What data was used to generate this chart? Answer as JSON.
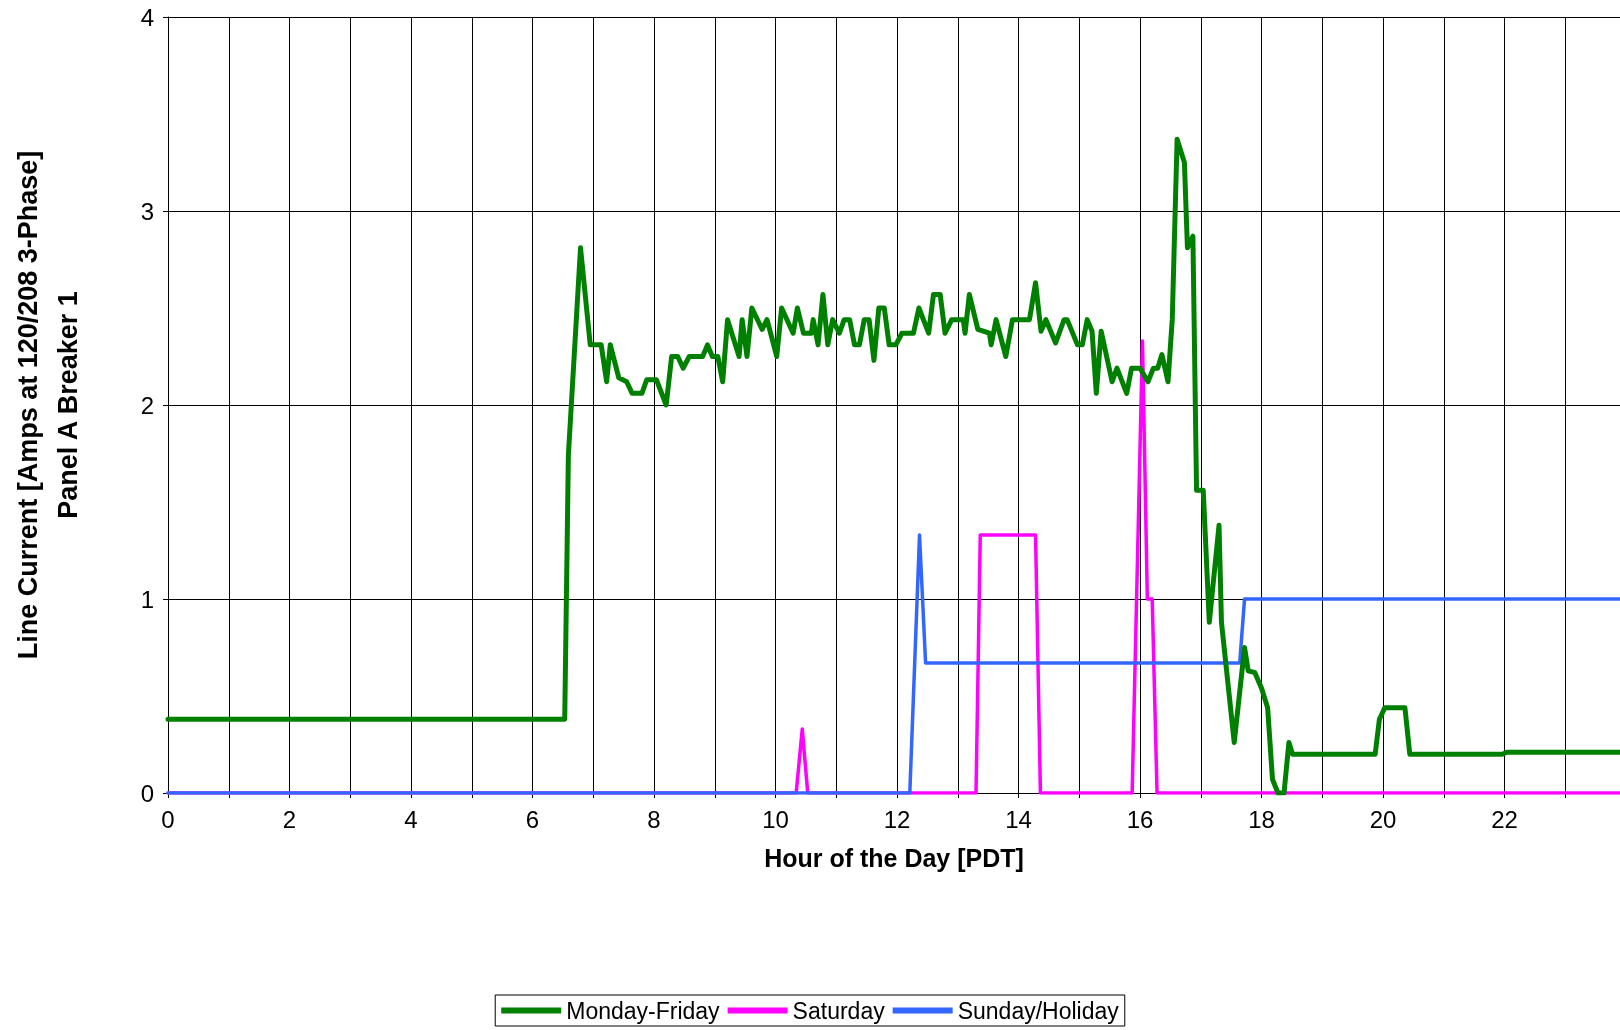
{
  "chart_data": {
    "type": "line",
    "xlabel": "Hour of the Day [PDT]",
    "ylabel": "Line Current [Amps at 120/208 3-Phase]\nPanel A Breaker 1",
    "xlim": [
      0,
      23.9
    ],
    "xticks": [
      0,
      {
        "value": 1,
        "label": null
      },
      2,
      {
        "value": 3,
        "label": null
      },
      4,
      {
        "value": 5,
        "label": null
      },
      6,
      {
        "value": 7,
        "label": null
      },
      8,
      {
        "value": 9,
        "label": null
      },
      10,
      {
        "value": 11,
        "label": null
      },
      12,
      {
        "value": 13,
        "label": null
      },
      14,
      {
        "value": 15,
        "label": null
      },
      16,
      {
        "value": 17,
        "label": null
      },
      18,
      {
        "value": 19,
        "label": null
      },
      20,
      {
        "value": 21,
        "label": null
      },
      22,
      {
        "value": 23,
        "label": null
      }
    ],
    "ylim": [
      0,
      4
    ],
    "yticks": [
      0,
      1,
      2,
      3,
      4
    ],
    "grid": true,
    "legend": "bottom",
    "marker": "none",
    "line_style": "solid",
    "series": [
      {
        "name": "Monday-Friday",
        "color": "#008000",
        "x": [
          0,
          6.53,
          6.59,
          6.79,
          6.95,
          7.13,
          7.22,
          7.28,
          7.42,
          7.55,
          7.64,
          7.8,
          7.88,
          8.04,
          8.2,
          8.29,
          8.39,
          8.48,
          8.58,
          8.8,
          8.88,
          8.96,
          9.05,
          9.13,
          9.21,
          9.4,
          9.45,
          9.53,
          9.61,
          9.78,
          9.86,
          10.02,
          10.1,
          10.29,
          10.36,
          10.46,
          10.59,
          10.62,
          10.7,
          10.78,
          10.86,
          10.94,
          11.05,
          11.13,
          11.22,
          11.3,
          11.38,
          11.46,
          11.54,
          11.62,
          11.7,
          11.79,
          11.87,
          11.98,
          12.08,
          12.27,
          12.36,
          12.52,
          12.6,
          12.71,
          12.79,
          12.9,
          13.09,
          13.12,
          13.19,
          13.33,
          13.52,
          13.55,
          13.63,
          13.79,
          13.9,
          14.18,
          14.28,
          14.37,
          14.45,
          14.61,
          14.75,
          14.8,
          14.97,
          15.05,
          15.13,
          15.21,
          15.28,
          15.36,
          15.54,
          15.62,
          15.78,
          15.86,
          16.0,
          16.13,
          16.22,
          16.29,
          16.36,
          16.46,
          16.53,
          16.61,
          16.73,
          16.78,
          16.87,
          16.93,
          17.04,
          17.14,
          17.3,
          17.34,
          17.55,
          17.72,
          17.78,
          17.89,
          18.0,
          18.1,
          18.18,
          18.27,
          18.37,
          18.45,
          18.51,
          19.87,
          19.94,
          20.03,
          20.36,
          20.44,
          21.96,
          22.04,
          23.9
        ],
        "values": [
          0.38,
          0.38,
          1.74,
          2.81,
          2.31,
          2.31,
          2.12,
          2.31,
          2.14,
          2.12,
          2.06,
          2.06,
          2.13,
          2.13,
          2.0,
          2.25,
          2.25,
          2.19,
          2.25,
          2.25,
          2.31,
          2.25,
          2.25,
          2.12,
          2.44,
          2.25,
          2.44,
          2.25,
          2.5,
          2.39,
          2.44,
          2.25,
          2.5,
          2.37,
          2.5,
          2.37,
          2.37,
          2.44,
          2.31,
          2.57,
          2.31,
          2.44,
          2.37,
          2.44,
          2.44,
          2.31,
          2.31,
          2.44,
          2.44,
          2.23,
          2.5,
          2.5,
          2.31,
          2.31,
          2.37,
          2.37,
          2.5,
          2.37,
          2.57,
          2.57,
          2.37,
          2.44,
          2.44,
          2.37,
          2.57,
          2.39,
          2.37,
          2.31,
          2.44,
          2.25,
          2.44,
          2.44,
          2.63,
          2.38,
          2.44,
          2.32,
          2.44,
          2.44,
          2.31,
          2.31,
          2.44,
          2.38,
          2.06,
          2.38,
          2.12,
          2.19,
          2.06,
          2.19,
          2.19,
          2.12,
          2.19,
          2.19,
          2.26,
          2.12,
          2.44,
          3.37,
          3.25,
          2.81,
          2.87,
          1.56,
          1.56,
          0.88,
          1.38,
          0.88,
          0.26,
          0.75,
          0.63,
          0.62,
          0.54,
          0.44,
          0.07,
          0.0,
          0.0,
          0.26,
          0.2,
          0.2,
          0.38,
          0.44,
          0.44,
          0.2,
          0.2,
          0.21,
          0.21
        ]
      },
      {
        "name": "Saturday",
        "color": "#ff00ff",
        "x": [
          0,
          10.34,
          10.44,
          10.53,
          13.3,
          13.37,
          14.28,
          14.36,
          15.87,
          16.04,
          16.12,
          16.2,
          16.28,
          23.9
        ],
        "values": [
          0,
          0,
          0.33,
          0,
          0,
          1.33,
          1.33,
          0,
          0,
          2.33,
          1.0,
          1.0,
          0,
          0
        ]
      },
      {
        "name": "Sunday/Holiday",
        "color": "#3366ff",
        "x": [
          0,
          12.21,
          12.37,
          12.47,
          17.64,
          17.72,
          23.9
        ],
        "values": [
          0,
          0,
          1.33,
          0.67,
          0.67,
          1.0,
          1.0
        ]
      }
    ]
  }
}
